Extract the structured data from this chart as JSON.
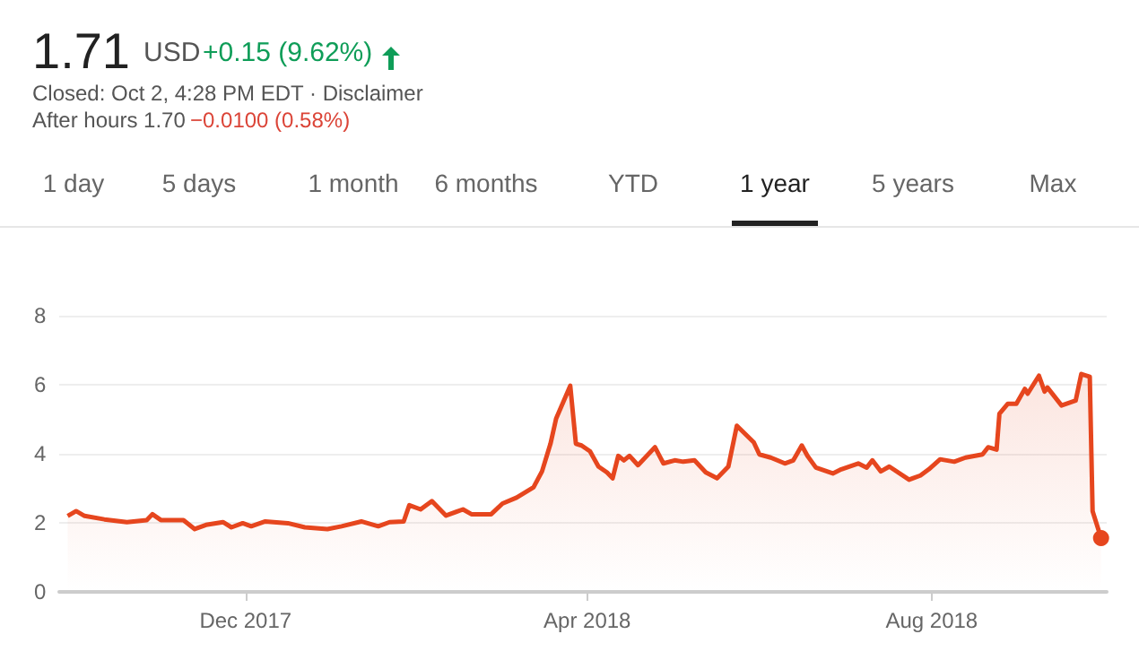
{
  "chart_data": {
    "type": "area",
    "annotations": [
      "1.71",
      "USD",
      "+0.15 (9.62%)",
      "Closed: Oct 2, 4:28 PM EDT · Disclaimer",
      "After hours 1.70",
      "−0.0100 (0.58%)",
      "1 day",
      "5 days",
      "1 month",
      "6 months",
      "YTD",
      "1 year",
      "5 years",
      "Max"
    ],
    "x": [
      "2017-09-29",
      "2017-10-02",
      "2017-10-05",
      "2017-10-12",
      "2017-10-20",
      "2017-10-27",
      "2017-10-29",
      "2017-11-01",
      "2017-11-09",
      "2017-11-13",
      "2017-11-17",
      "2017-11-23",
      "2017-11-26",
      "2017-11-30",
      "2017-12-03",
      "2017-12-08",
      "2017-12-16",
      "2017-12-22",
      "2017-12-30",
      "2018-01-04",
      "2018-01-11",
      "2018-01-17",
      "2018-01-21",
      "2018-01-26",
      "2018-01-28",
      "2018-02-01",
      "2018-02-05",
      "2018-02-10",
      "2018-02-16",
      "2018-02-19",
      "2018-02-26",
      "2018-03-02",
      "2018-03-07",
      "2018-03-13",
      "2018-03-16",
      "2018-03-19",
      "2018-03-21",
      "2018-03-26",
      "2018-03-28",
      "2018-03-30",
      "2018-04-02",
      "2018-04-05",
      "2018-04-08",
      "2018-04-10",
      "2018-04-12",
      "2018-04-14",
      "2018-04-16",
      "2018-04-19",
      "2018-04-25",
      "2018-04-28",
      "2018-05-02",
      "2018-05-05",
      "2018-05-09",
      "2018-05-13",
      "2018-05-17",
      "2018-05-21",
      "2018-05-24",
      "2018-05-30",
      "2018-06-01",
      "2018-06-05",
      "2018-06-10",
      "2018-06-13",
      "2018-06-16",
      "2018-06-18",
      "2018-06-21",
      "2018-06-27",
      "2018-06-30",
      "2018-07-06",
      "2018-07-09",
      "2018-07-11",
      "2018-07-14",
      "2018-07-17",
      "2018-07-24",
      "2018-07-28",
      "2018-07-31",
      "2018-08-04",
      "2018-08-09",
      "2018-08-13",
      "2018-08-19",
      "2018-08-21",
      "2018-08-24",
      "2018-08-25",
      "2018-08-28",
      "2018-08-31",
      "2018-09-03",
      "2018-09-04",
      "2018-09-08",
      "2018-09-10",
      "2018-09-11",
      "2018-09-16",
      "2018-09-21",
      "2018-09-23",
      "2018-09-26",
      "2018-09-27",
      "2018-09-30"
    ],
    "series": [
      {
        "color": "#e6461e",
        "values": [
          2.2,
          2.34,
          2.2,
          2.1,
          2.02,
          2.08,
          2.25,
          2.08,
          2.08,
          1.82,
          1.94,
          2.02,
          1.87,
          1.99,
          1.9,
          2.04,
          1.99,
          1.87,
          1.82,
          1.9,
          2.04,
          1.9,
          2.02,
          2.04,
          2.51,
          2.39,
          2.63,
          2.21,
          2.39,
          2.25,
          2.25,
          2.56,
          2.73,
          3.03,
          3.49,
          4.29,
          5.02,
          5.97,
          4.29,
          4.24,
          4.07,
          3.63,
          3.46,
          3.29,
          3.94,
          3.81,
          3.94,
          3.67,
          4.19,
          3.72,
          3.81,
          3.77,
          3.81,
          3.46,
          3.29,
          3.63,
          4.81,
          4.33,
          3.98,
          3.89,
          3.72,
          3.81,
          4.24,
          3.94,
          3.6,
          3.43,
          3.55,
          3.72,
          3.6,
          3.81,
          3.49,
          3.63,
          3.25,
          3.37,
          3.55,
          3.84,
          3.77,
          3.89,
          3.98,
          4.19,
          4.12,
          5.16,
          5.45,
          5.45,
          5.88,
          5.74,
          6.26,
          5.8,
          5.92,
          5.4,
          5.54,
          6.31,
          6.23,
          2.34,
          1.56
        ]
      }
    ],
    "xlim": [
      "2017-09-26",
      "2018-10-02"
    ],
    "xticks": [
      {
        "value": "2017-12-01",
        "label": "Dec 2017"
      },
      {
        "value": "2018-04-01",
        "label": "Apr 2018"
      },
      {
        "value": "2018-08-01",
        "label": "Aug 2018"
      }
    ],
    "ylim": [
      0,
      8
    ],
    "yticks": [
      0,
      2,
      4,
      6,
      8
    ],
    "grid": "y"
  }
}
